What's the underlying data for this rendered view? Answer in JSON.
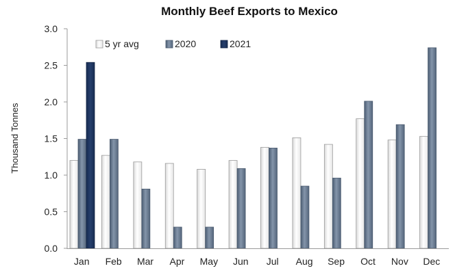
{
  "chart_data": {
    "type": "bar",
    "title": "Monthly Beef Exports to Mexico",
    "xlabel": "",
    "ylabel": "Thousand Tonnes",
    "ylim": [
      0,
      3.0
    ],
    "yticks": [
      "0.0",
      "0.5",
      "1.0",
      "1.5",
      "2.0",
      "2.5",
      "3.0"
    ],
    "grid": false,
    "legend": "top-left",
    "categories": [
      "Jan",
      "Feb",
      "Mar",
      "Apr",
      "May",
      "Jun",
      "Jul",
      "Aug",
      "Sep",
      "Oct",
      "Nov",
      "Dec"
    ],
    "series": [
      {
        "name": "5 yr avg",
        "color": "#f4f4f4",
        "values": [
          1.2,
          1.27,
          1.18,
          1.16,
          1.08,
          1.2,
          1.38,
          1.51,
          1.42,
          1.77,
          1.48,
          1.53
        ]
      },
      {
        "name": "2020",
        "color": "#62748a",
        "values": [
          1.49,
          1.49,
          0.81,
          0.29,
          0.29,
          1.09,
          1.37,
          0.85,
          0.96,
          2.01,
          1.69,
          2.74
        ]
      },
      {
        "name": "2021",
        "color": "#1c3560",
        "values": [
          2.54,
          null,
          null,
          null,
          null,
          null,
          null,
          null,
          null,
          null,
          null,
          null
        ]
      }
    ]
  }
}
